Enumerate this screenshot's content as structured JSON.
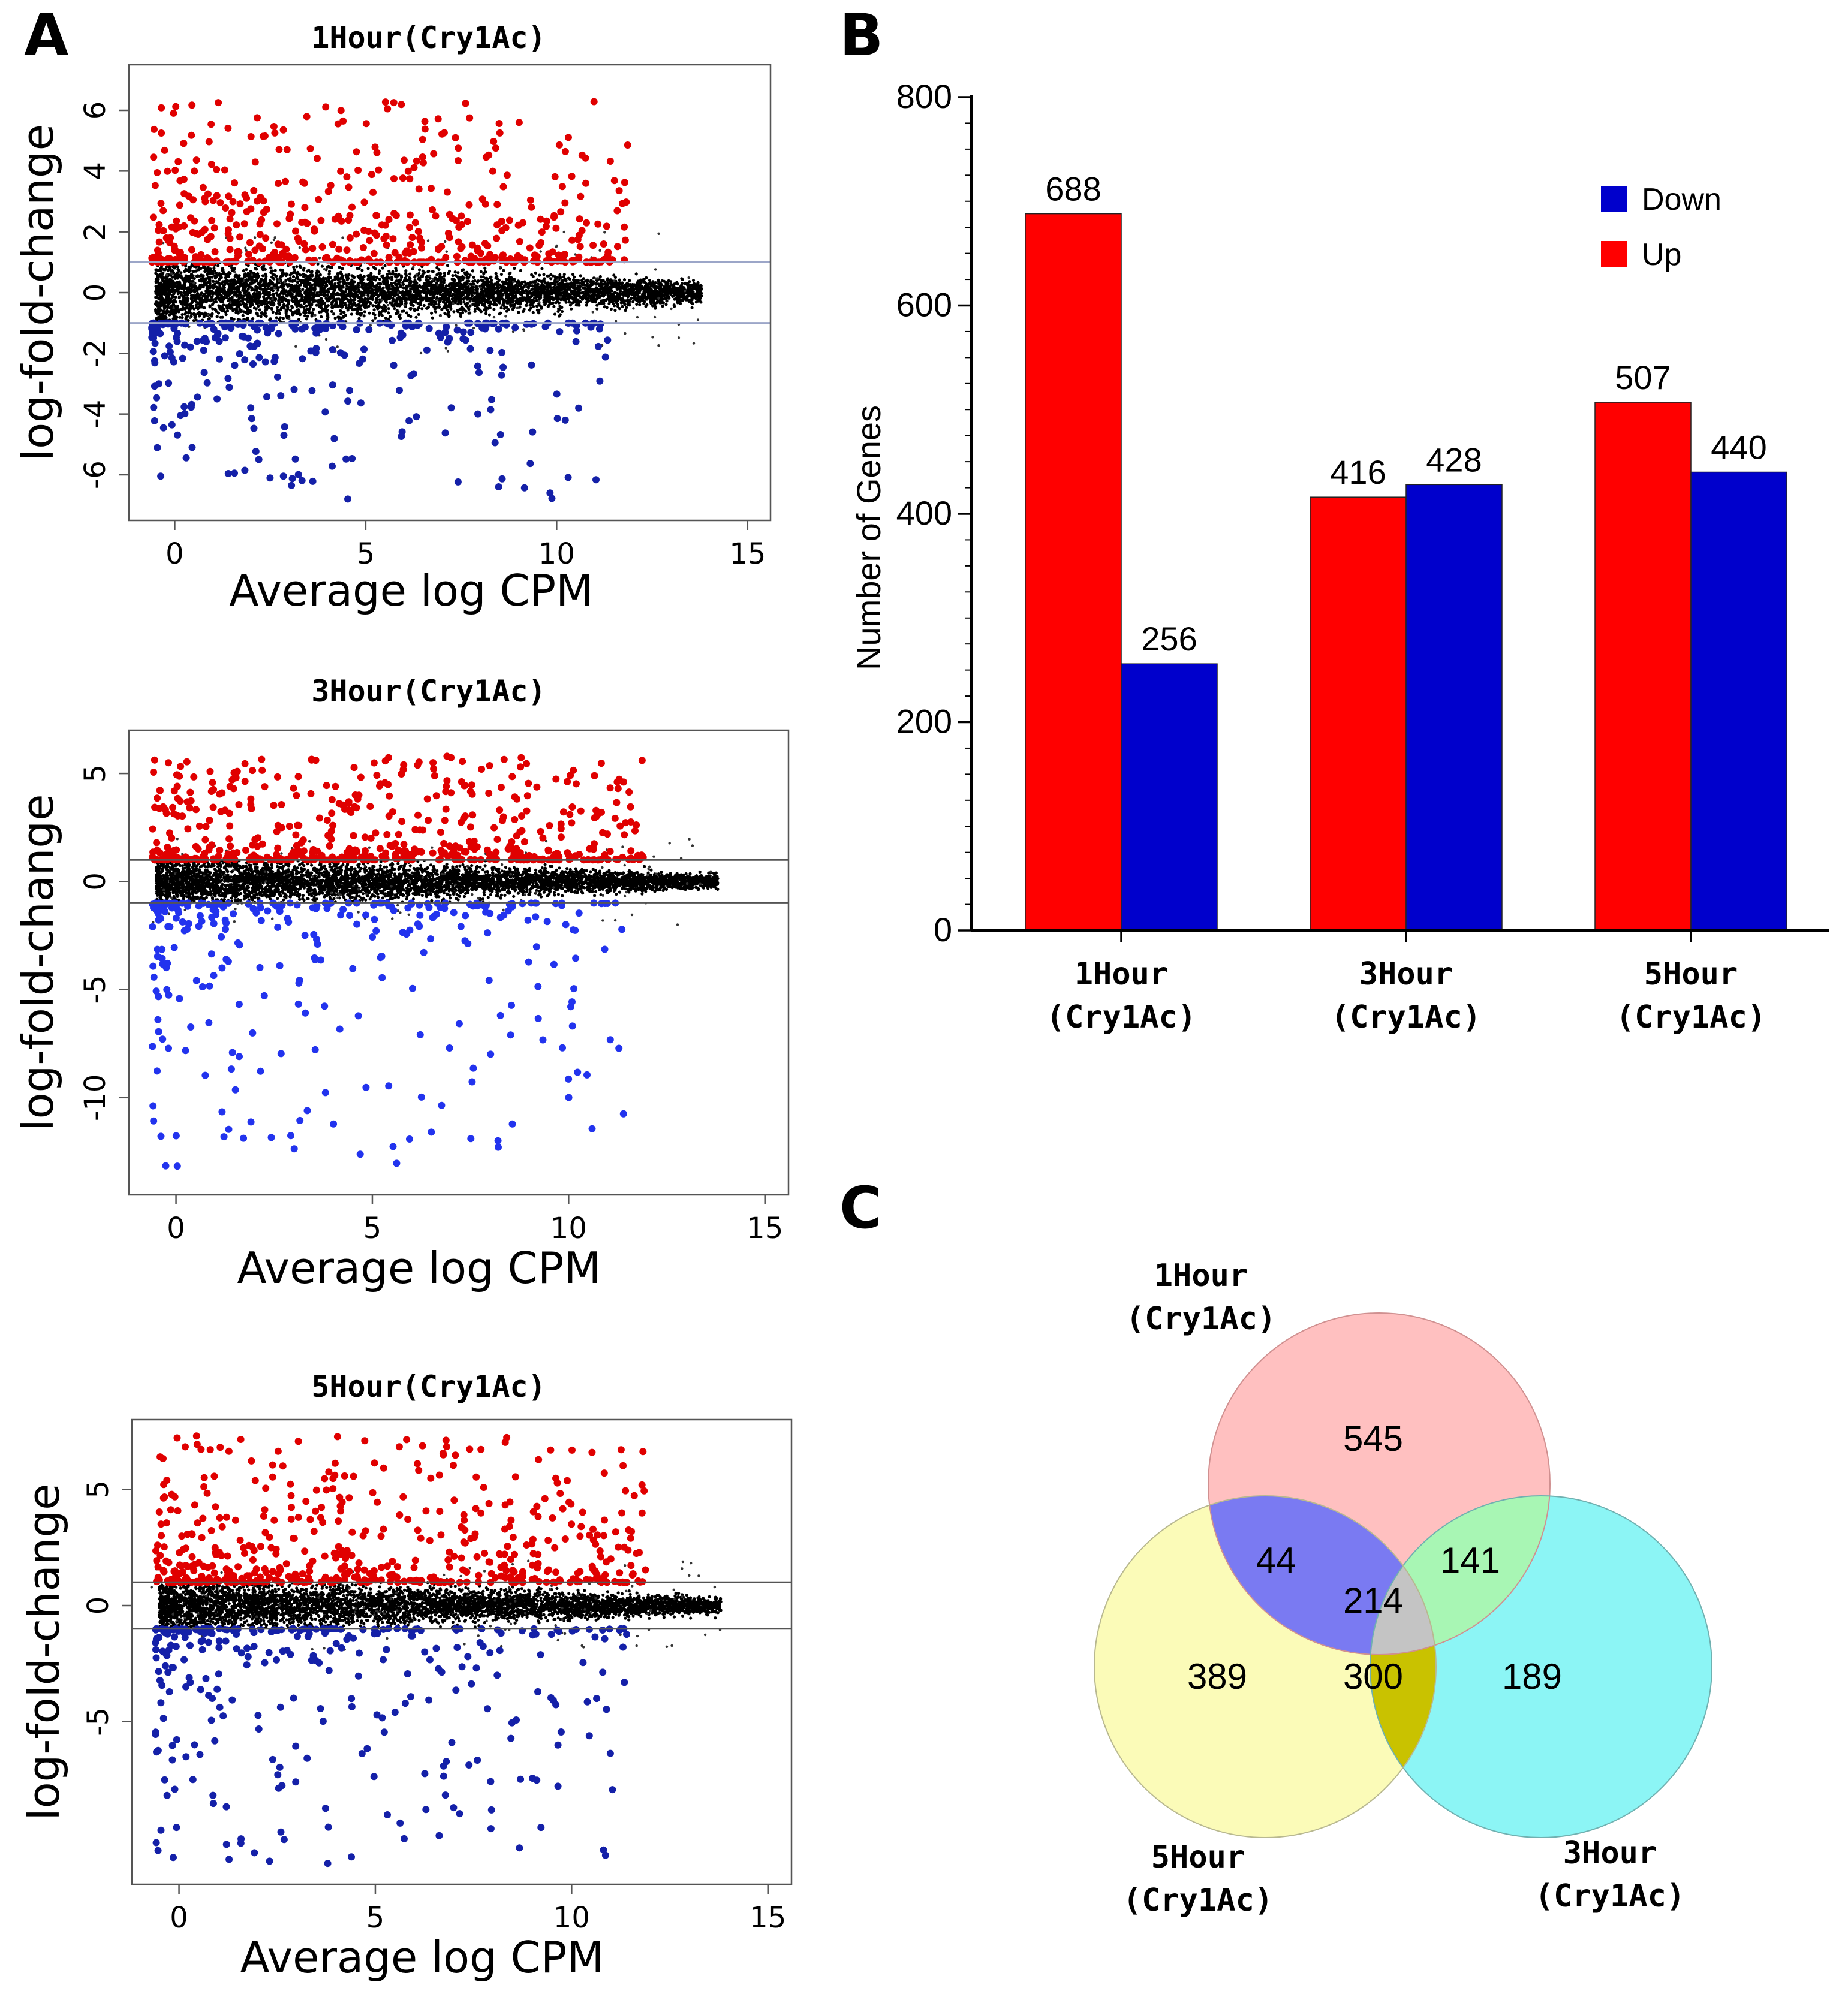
{
  "panels": {
    "a": "A",
    "b": "B",
    "c": "C"
  },
  "ma_plots": [
    {
      "title": "1Hour(Cry1Ac)",
      "xlabel": "Average log CPM",
      "ylabel": "log-fold-change",
      "xlim": [
        -1.2,
        15.6
      ],
      "ylim": [
        -7.5,
        7.5
      ],
      "xticks": [
        0,
        5,
        10,
        15
      ],
      "yticks": [
        -6,
        -4,
        -2,
        0,
        2,
        4,
        6
      ],
      "thresholds": [
        1,
        -1
      ],
      "threshold_color": "#9ca6c8",
      "seed": 11,
      "up_max": 6.5,
      "down_min": -7
    },
    {
      "title": "3Hour(Cry1Ac)",
      "xlabel": "Average log CPM",
      "ylabel": "log-fold-change",
      "xlim": [
        -1.2,
        15.6
      ],
      "ylim": [
        -14.5,
        7
      ],
      "xticks": [
        0,
        5,
        10,
        15
      ],
      "yticks": [
        -10,
        -5,
        0,
        5
      ],
      "thresholds": [
        1,
        -1
      ],
      "threshold_color": "#555555",
      "seed": 23,
      "up_max": 6,
      "down_min": -13.5
    },
    {
      "title": "5Hour(Cry1Ac)",
      "xlabel": "Average log CPM",
      "ylabel": "log-fold-change",
      "xlim": [
        -1.2,
        15.6
      ],
      "ylim": [
        -12,
        8
      ],
      "xticks": [
        0,
        5,
        10,
        15
      ],
      "yticks": [
        -5,
        0,
        5
      ],
      "thresholds": [
        1,
        -1
      ],
      "threshold_color": "#555555",
      "seed": 37,
      "up_max": 7.5,
      "down_min": -11.5
    }
  ],
  "chart_data": [
    {
      "type": "bar",
      "categories": [
        [
          "1Hour",
          "(Cry1Ac)"
        ],
        [
          "3Hour",
          "(Cry1Ac)"
        ],
        [
          "5Hour",
          "(Cry1Ac)"
        ]
      ],
      "series": [
        {
          "name": "Up",
          "color": "#ff0000",
          "values": [
            688,
            416,
            507
          ]
        },
        {
          "name": "Down",
          "color": "#0000cc",
          "values": [
            256,
            428,
            440
          ]
        }
      ],
      "legend": [
        {
          "name": "Down",
          "color": "#0000cc"
        },
        {
          "name": "Up",
          "color": "#ff0000"
        }
      ],
      "ylabel": "Number of Genes",
      "xlabel": "",
      "ylim": [
        0,
        800
      ],
      "yticks": [
        0,
        200,
        400,
        600,
        800
      ]
    },
    {
      "type": "venn",
      "sets": [
        {
          "name": [
            "1Hour",
            "(Cry1Ac)"
          ],
          "color": "#ffc0c0"
        },
        {
          "name": [
            "3Hour",
            "(Cry1Ac)"
          ],
          "color": "#8cf5f5"
        },
        {
          "name": [
            "5Hour",
            "(Cry1Ac)"
          ],
          "color": "#fbfbb8"
        }
      ],
      "regions": {
        "only_1h": 545,
        "only_3h": 189,
        "only_5h": 389,
        "1h_5h": 44,
        "1h_3h": 141,
        "3h_5h": 300,
        "all": 214
      },
      "overlap_colors": {
        "1h_5h": "#7a7af2",
        "1h_3h": "#a8f6b4",
        "3h_5h": "#c9c200",
        "all": "#c4c4c4"
      }
    }
  ]
}
